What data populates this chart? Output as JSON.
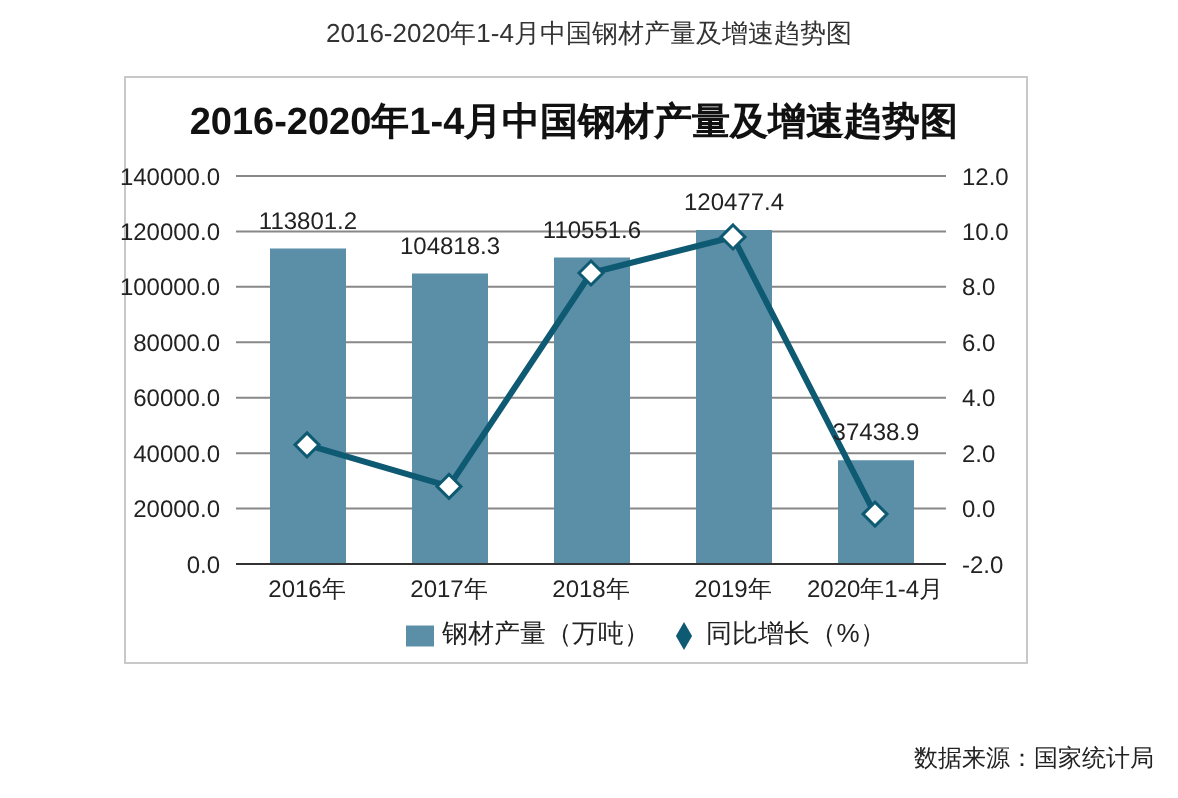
{
  "chart_data": {
    "type": "bar",
    "title": "2016-2020年1-4月中国钢材产量及增速趋势图",
    "subtitle": "2016-2020年1-4月中国钢材产量及增速趋势图",
    "categories": [
      "2016年",
      "2017年",
      "2018年",
      "2019年",
      "2020年1-4月"
    ],
    "series": [
      {
        "name": "钢材产量（万吨）",
        "color": "#5b8fa8",
        "values": [
          113801.2,
          104818.3,
          110551.6,
          120477.4,
          37438.9
        ],
        "value_labels": [
          "113801.2",
          "104818.3",
          "110551.6",
          "120477.4",
          "37438.9"
        ]
      },
      {
        "name": "同比增长（%）",
        "type": "line",
        "axis": "y2",
        "color": "#0e5a72",
        "values": [
          2.3,
          0.8,
          8.5,
          9.8,
          -0.2
        ],
        "marker": "diamond"
      }
    ],
    "ylim": [
      0,
      140000
    ],
    "yticks": [
      {
        "value": 0,
        "label": "0.0"
      },
      {
        "value": 20000,
        "label": "20000.0"
      },
      {
        "value": 40000,
        "label": "40000.0"
      },
      {
        "value": 60000,
        "label": "60000.0"
      },
      {
        "value": 80000,
        "label": "80000.0"
      },
      {
        "value": 100000,
        "label": "100000.0"
      },
      {
        "value": 120000,
        "label": "120000.0"
      },
      {
        "value": 140000,
        "label": "140000.0"
      }
    ],
    "y2lim": [
      -2,
      12
    ],
    "y2ticks": [
      {
        "value": -2,
        "label": "-2.0"
      },
      {
        "value": 0,
        "label": "0.0"
      },
      {
        "value": 2,
        "label": "2.0"
      },
      {
        "value": 4,
        "label": "4.0"
      },
      {
        "value": 6,
        "label": "6.0"
      },
      {
        "value": 8,
        "label": "8.0"
      },
      {
        "value": 10,
        "label": "10.0"
      },
      {
        "value": 12,
        "label": "12.0"
      }
    ],
    "grid": "y",
    "legend": "bottom",
    "annotations": [
      "数据来源：国家统计局"
    ]
  }
}
